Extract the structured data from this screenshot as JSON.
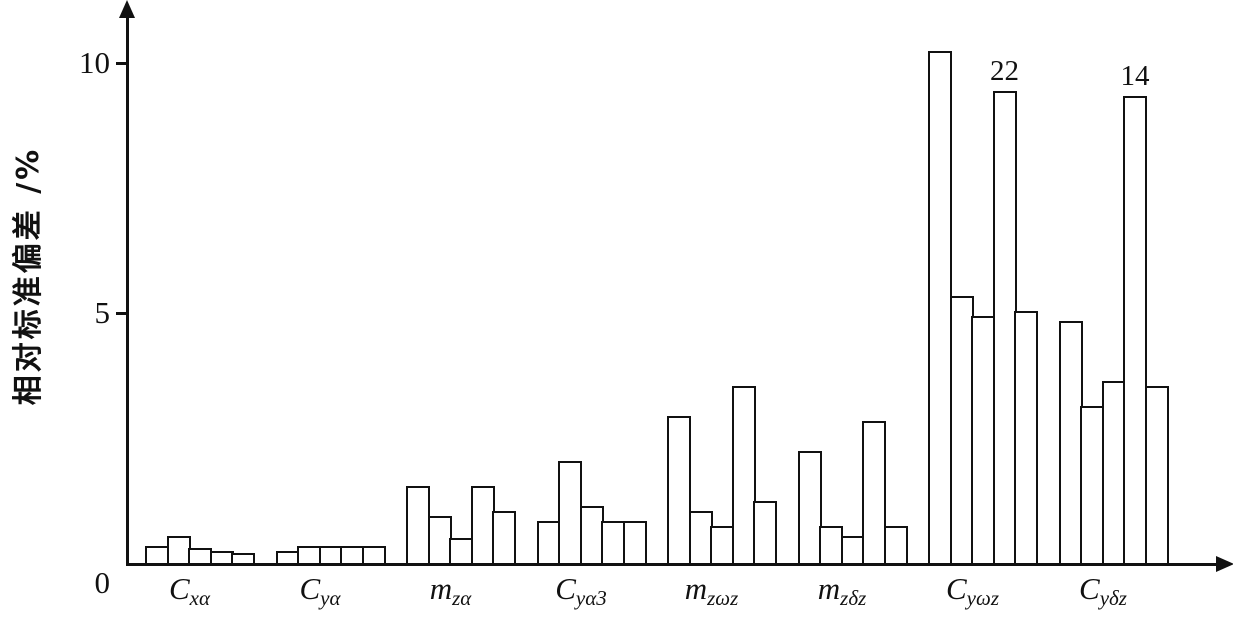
{
  "chart_data": {
    "type": "bar",
    "title": "",
    "xlabel": "",
    "ylabel": "相对标准偏差 /%",
    "ylim": [
      0,
      11.1
    ],
    "grid": false,
    "legend": "none",
    "bar_fill": "#ffffff",
    "bar_border": "#111111",
    "yticks": [
      {
        "value": 0,
        "label": "0"
      },
      {
        "value": 5,
        "label": "5"
      },
      {
        "value": 10,
        "label": "10"
      }
    ],
    "groups": [
      {
        "label_main": "C",
        "label_sub": "xα",
        "values": [
          0.3,
          0.5,
          0.25,
          0.2,
          0.15
        ],
        "bar_labels": [
          null,
          null,
          null,
          null,
          null
        ]
      },
      {
        "label_main": "C",
        "label_sub": "yα",
        "values": [
          0.2,
          0.3,
          0.3,
          0.3,
          0.3
        ],
        "bar_labels": [
          null,
          null,
          null,
          null,
          null
        ]
      },
      {
        "label_main": "m",
        "label_sub": "zα",
        "values": [
          1.5,
          0.9,
          0.45,
          1.5,
          1.0
        ],
        "bar_labels": [
          null,
          null,
          null,
          null,
          null
        ]
      },
      {
        "label_main": "C",
        "label_sub": "yα3",
        "values": [
          0.8,
          2.0,
          1.1,
          0.8,
          0.8
        ],
        "bar_labels": [
          null,
          null,
          null,
          null,
          null
        ]
      },
      {
        "label_main": "m",
        "label_sub": "zωz",
        "values": [
          2.9,
          1.0,
          0.7,
          3.5,
          1.2
        ],
        "bar_labels": [
          null,
          null,
          null,
          null,
          null
        ]
      },
      {
        "label_main": "m",
        "label_sub": "zδz",
        "values": [
          2.2,
          0.7,
          0.5,
          2.8,
          0.7
        ],
        "bar_labels": [
          null,
          null,
          null,
          null,
          null
        ]
      },
      {
        "label_main": "C",
        "label_sub": "yωz",
        "values": [
          10.2,
          5.3,
          4.9,
          9.4,
          5.0
        ],
        "bar_labels": [
          null,
          null,
          null,
          "22",
          null
        ]
      },
      {
        "label_main": "C",
        "label_sub": "yδz",
        "values": [
          4.8,
          3.1,
          3.6,
          9.3,
          3.5
        ],
        "bar_labels": [
          null,
          null,
          null,
          "14",
          null
        ]
      }
    ]
  }
}
